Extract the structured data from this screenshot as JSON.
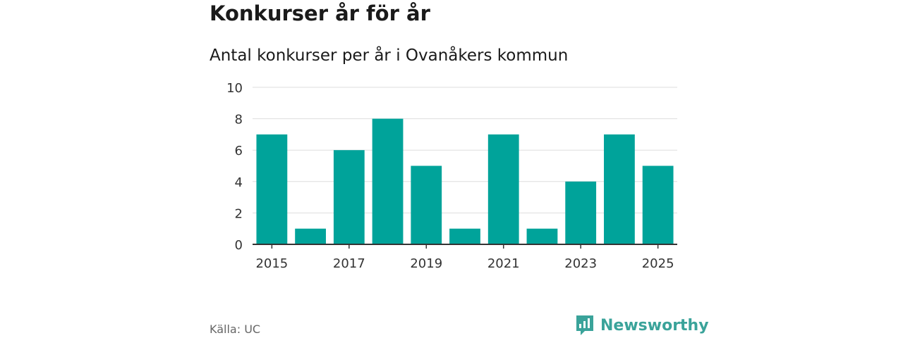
{
  "header": {
    "title": "Konkurser år för år",
    "subtitle": "Antal konkurser per år i Ovanåkers kommun"
  },
  "footer": {
    "source": "Källa: UC",
    "brand": "Newsworthy"
  },
  "colors": {
    "bar": "#00a39a",
    "grid": "#dddddd",
    "axis": "#333333",
    "brand": "#3aa39a"
  },
  "chart_data": {
    "type": "bar",
    "categories": [
      "2015",
      "2016",
      "2017",
      "2018",
      "2019",
      "2020",
      "2021",
      "2022",
      "2023",
      "2024",
      "2025"
    ],
    "values": [
      7,
      1,
      6,
      8,
      5,
      1,
      7,
      1,
      4,
      7,
      5
    ],
    "x_tick_labels": [
      "2015",
      "2017",
      "2019",
      "2021",
      "2023",
      "2025"
    ],
    "y_ticks": [
      0,
      2,
      4,
      6,
      8,
      10
    ],
    "ylim": [
      0,
      10
    ],
    "xlabel": "",
    "ylabel": "",
    "grid": true,
    "legend": "none"
  }
}
